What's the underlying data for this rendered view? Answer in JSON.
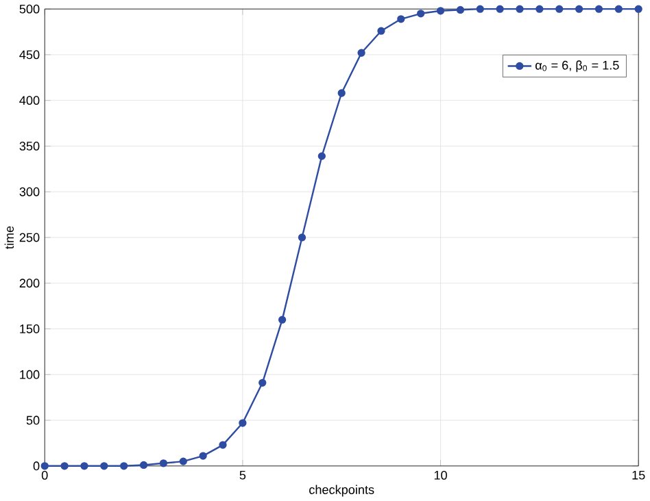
{
  "chart_data": {
    "type": "line",
    "xlabel": "checkpoints",
    "ylabel": "time",
    "x": [
      0,
      0.5,
      1,
      1.5,
      2,
      2.5,
      3,
      3.5,
      4,
      4.5,
      5,
      5.5,
      6,
      6.5,
      7,
      7.5,
      8,
      8.5,
      9,
      9.5,
      10,
      10.5,
      11,
      11.5,
      12,
      12.5,
      13,
      13.5,
      14,
      14.5,
      15
    ],
    "series": [
      {
        "name": "α$_{0}$ = 6, β$_{0}$ = 1.5",
        "color": "#2e4ca2",
        "values": [
          0,
          0,
          0,
          0,
          0,
          1,
          3,
          5,
          11,
          23,
          47,
          91,
          160,
          250,
          339,
          408,
          452,
          476,
          489,
          495,
          498,
          499,
          500,
          500,
          500,
          500,
          500,
          500,
          500,
          500,
          500
        ]
      }
    ],
    "xlim": [
      0,
      15
    ],
    "ylim": [
      0,
      500
    ],
    "xticks": [
      0,
      5,
      10,
      15
    ],
    "yticks": [
      0,
      50,
      100,
      150,
      200,
      250,
      300,
      350,
      400,
      450,
      500
    ],
    "grid": true,
    "legend": "top right",
    "marker": "circle",
    "line_style": "solid"
  }
}
